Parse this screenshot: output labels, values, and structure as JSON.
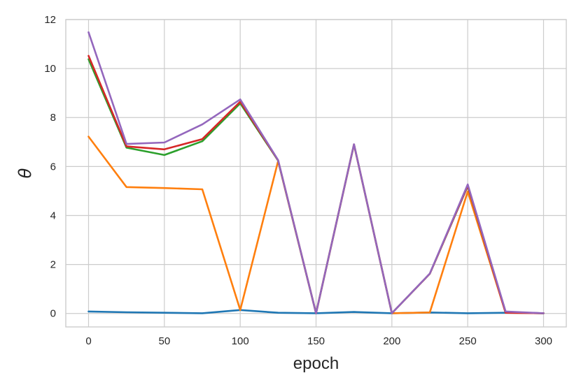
{
  "chart_data": {
    "type": "line",
    "title": "",
    "xlabel": "epoch",
    "ylabel": "θ",
    "xlim": [
      -15,
      315
    ],
    "ylim": [
      -0.55,
      12.0
    ],
    "xticks": [
      0,
      50,
      100,
      150,
      200,
      250,
      300
    ],
    "yticks": [
      0,
      2,
      4,
      6,
      8,
      10,
      12
    ],
    "grid": true,
    "legend": "none",
    "x": [
      0,
      25,
      50,
      75,
      100,
      125,
      150,
      175,
      200,
      225,
      250,
      275,
      300
    ],
    "series": [
      {
        "color": "#1f77b4",
        "values": [
          0.08,
          0.05,
          0.03,
          0.01,
          0.14,
          0.03,
          0.01,
          0.06,
          0.01,
          0.04,
          0.01,
          0.03,
          0.01
        ]
      },
      {
        "color": "#ff7f0e",
        "values": [
          7.22,
          5.16,
          5.12,
          5.07,
          0.14,
          6.22,
          0.01,
          6.9,
          0.01,
          0.04,
          4.98,
          0.03,
          0.01
        ]
      },
      {
        "color": "#2ca02c",
        "values": [
          10.38,
          6.77,
          6.47,
          7.03,
          8.58,
          6.24,
          0.01,
          6.9,
          0.01,
          1.62,
          5.2,
          0.05,
          0.01
        ]
      },
      {
        "color": "#d62728",
        "values": [
          10.52,
          6.82,
          6.7,
          7.12,
          8.65,
          6.25,
          0.01,
          6.9,
          0.01,
          1.62,
          5.22,
          0.03,
          0.01
        ]
      },
      {
        "color": "#9467bd",
        "values": [
          11.48,
          6.92,
          6.98,
          7.72,
          8.74,
          6.26,
          0.01,
          6.91,
          0.01,
          1.63,
          5.27,
          0.08,
          0.01
        ]
      }
    ]
  }
}
